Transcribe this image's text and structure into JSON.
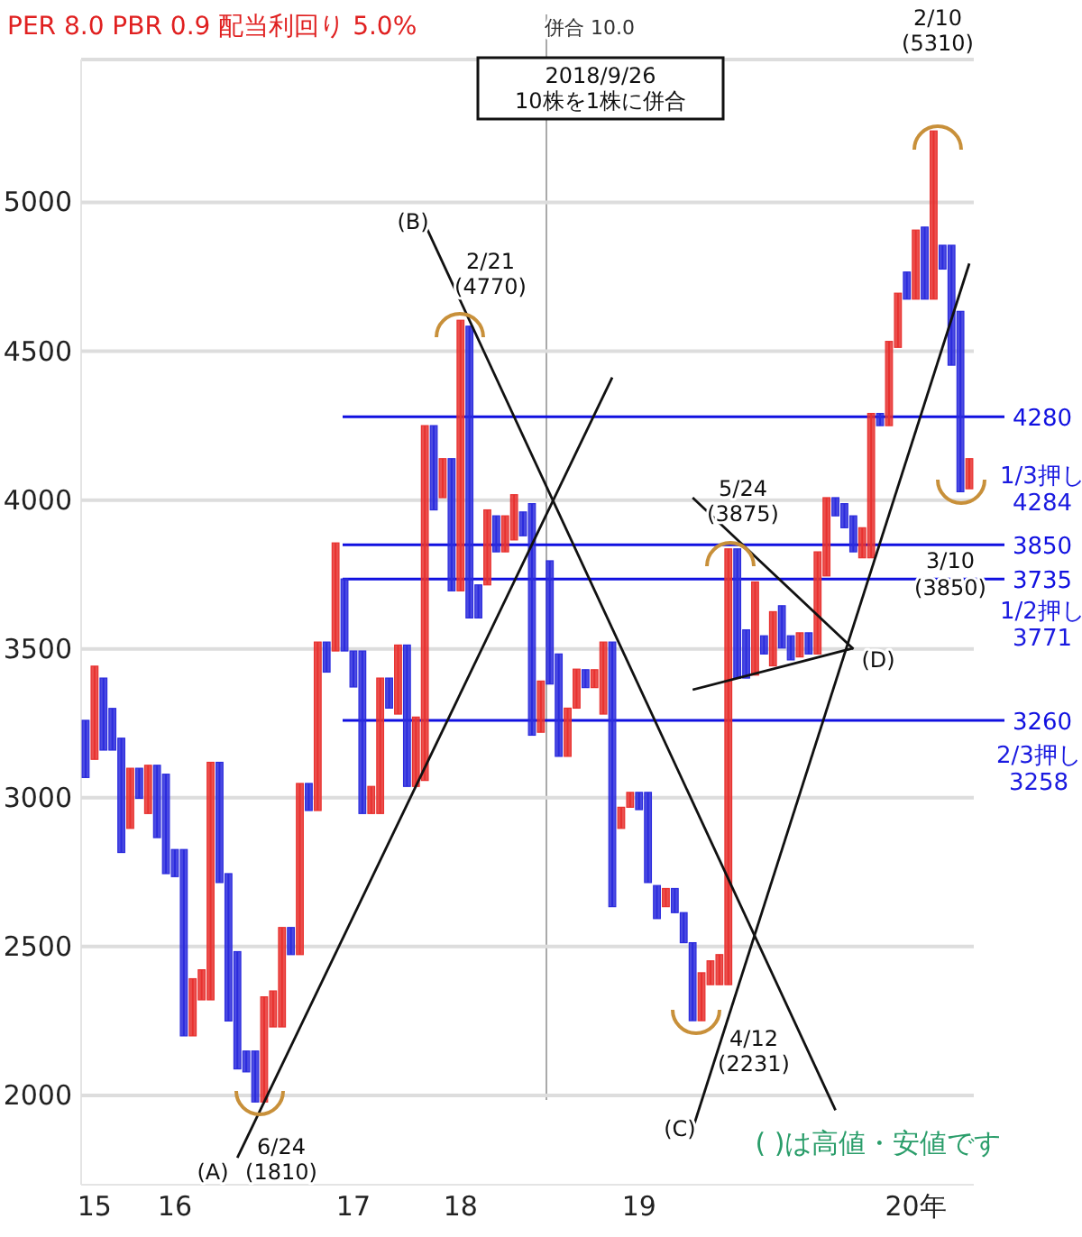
{
  "chart_data": {
    "type": "candlestick",
    "title": "PER 8.0 PBR 0.9 配当利回り 5.0%",
    "categories": [
      null,
      "15",
      null,
      null,
      null,
      null,
      null,
      null,
      null,
      null,
      "16",
      null,
      null,
      null,
      null,
      null,
      null,
      null,
      null,
      null,
      null,
      null,
      null,
      null,
      null,
      null,
      null,
      null,
      null,
      null,
      "17",
      null,
      null,
      null,
      null,
      null,
      null,
      null,
      null,
      null,
      null,
      null,
      "18",
      null,
      null,
      null,
      null,
      null,
      null,
      null,
      null,
      null,
      null,
      null,
      null,
      null,
      null,
      null,
      null,
      null,
      null,
      null,
      "19",
      null,
      null,
      null,
      null,
      null,
      null,
      null,
      null,
      null,
      null,
      null,
      null,
      null,
      null,
      null,
      null,
      null,
      null,
      null,
      null,
      null,
      null,
      null,
      null,
      null,
      null,
      null,
      null,
      null,
      null,
      "20年",
      null,
      null,
      null,
      null,
      null,
      null
    ],
    "ohlc": [
      [
        3260,
        3260,
        3068,
        3068
      ],
      [
        3129,
        3442,
        3129,
        3442
      ],
      [
        3402,
        3402,
        3160,
        3160
      ],
      [
        3300,
        3300,
        3160,
        3160
      ],
      [
        3200,
        3200,
        2816,
        2816
      ],
      [
        2897,
        3099,
        2897,
        3099
      ],
      [
        3099,
        3099,
        2998,
        2998
      ],
      [
        2947,
        3109,
        2947,
        3109
      ],
      [
        3109,
        3109,
        2866,
        2866
      ],
      [
        3079,
        3079,
        2745,
        2745
      ],
      [
        2826,
        2826,
        2735,
        2735
      ],
      [
        2826,
        2826,
        2200,
        2200
      ],
      [
        2200,
        2392,
        2200,
        2392
      ],
      [
        2321,
        2422,
        2321,
        2422
      ],
      [
        2321,
        3119,
        2321,
        3119
      ],
      [
        3119,
        3119,
        2715,
        2715
      ],
      [
        2745,
        2745,
        2250,
        2250
      ],
      [
        2483,
        2483,
        2089,
        2089
      ],
      [
        2149,
        2149,
        2079,
        2079
      ],
      [
        2149,
        2149,
        1978,
        1978
      ],
      [
        1978,
        2331,
        1978,
        2331
      ],
      [
        2230,
        2351,
        2230,
        2351
      ],
      [
        2230,
        2564,
        2230,
        2564
      ],
      [
        2564,
        2564,
        2473,
        2473
      ],
      [
        2473,
        3048,
        2473,
        3048
      ],
      [
        3048,
        3048,
        2957,
        2957
      ],
      [
        2957,
        3523,
        2957,
        3523
      ],
      [
        3523,
        3523,
        3422,
        3422
      ],
      [
        3493,
        3856,
        3493,
        3856
      ],
      [
        3735,
        3735,
        3493,
        3493
      ],
      [
        3493,
        3493,
        3372,
        3372
      ],
      [
        3493,
        3493,
        2947,
        2947
      ],
      [
        2947,
        3038,
        2947,
        3038
      ],
      [
        2947,
        3402,
        2947,
        3402
      ],
      [
        3402,
        3402,
        3301,
        3301
      ],
      [
        3281,
        3513,
        3281,
        3513
      ],
      [
        3513,
        3513,
        3038,
        3038
      ],
      [
        3038,
        3271,
        3038,
        3271
      ],
      [
        3058,
        4250,
        3058,
        4250
      ],
      [
        4250,
        4250,
        3967,
        3967
      ],
      [
        4008,
        4139,
        4008,
        4139
      ],
      [
        4139,
        4139,
        3695,
        3695
      ],
      [
        3695,
        4604,
        3695,
        4604
      ],
      [
        4584,
        4584,
        3604,
        3604
      ],
      [
        3715,
        3715,
        3604,
        3604
      ],
      [
        3715,
        3967,
        3715,
        3967
      ],
      [
        3947,
        3947,
        3826,
        3826
      ],
      [
        3826,
        3947,
        3826,
        3947
      ],
      [
        3866,
        4018,
        3866,
        4018
      ],
      [
        3960,
        3960,
        3880,
        3880
      ],
      [
        3988,
        3988,
        3210,
        3210
      ],
      [
        3220,
        3392,
        3220,
        3392
      ],
      [
        3796,
        3796,
        3382,
        3382
      ],
      [
        3483,
        3483,
        3139,
        3139
      ],
      [
        3139,
        3301,
        3139,
        3301
      ],
      [
        3301,
        3432,
        3301,
        3432
      ],
      [
        3430,
        3430,
        3370,
        3370
      ],
      [
        3370,
        3430,
        3370,
        3430
      ],
      [
        3281,
        3523,
        3281,
        3523
      ],
      [
        3523,
        3523,
        2634,
        2634
      ],
      [
        2897,
        2968,
        2897,
        2968
      ],
      [
        2968,
        3018,
        2968,
        3018
      ],
      [
        3018,
        3018,
        2960,
        2960
      ],
      [
        3018,
        3018,
        2715,
        2715
      ],
      [
        2705,
        2705,
        2594,
        2594
      ],
      [
        2634,
        2695,
        2634,
        2695
      ],
      [
        2695,
        2695,
        2614,
        2614
      ],
      [
        2614,
        2614,
        2513,
        2513
      ],
      [
        2513,
        2513,
        2251,
        2251
      ],
      [
        2251,
        2412,
        2251,
        2412
      ],
      [
        2372,
        2452,
        2372,
        2452
      ],
      [
        2372,
        2473,
        2372,
        2473
      ],
      [
        2372,
        3836,
        2372,
        3836
      ],
      [
        3836,
        3836,
        3402,
        3402
      ],
      [
        3564,
        3564,
        3402,
        3402
      ],
      [
        3412,
        3725,
        3412,
        3725
      ],
      [
        3544,
        3544,
        3483,
        3483
      ],
      [
        3443,
        3625,
        3443,
        3625
      ],
      [
        3645,
        3645,
        3503,
        3503
      ],
      [
        3544,
        3544,
        3463,
        3463
      ],
      [
        3473,
        3554,
        3473,
        3554
      ],
      [
        3554,
        3554,
        3483,
        3483
      ],
      [
        3483,
        3826,
        3483,
        3826
      ],
      [
        3745,
        4008,
        3745,
        4008
      ],
      [
        4008,
        4008,
        3947,
        3947
      ],
      [
        3988,
        3988,
        3907,
        3907
      ],
      [
        3947,
        3947,
        3826,
        3826
      ],
      [
        3806,
        3907,
        3806,
        3907
      ],
      [
        3806,
        4291,
        3806,
        4291
      ],
      [
        4291,
        4291,
        4250,
        4250
      ],
      [
        4250,
        4533,
        4250,
        4533
      ],
      [
        4513,
        4695,
        4513,
        4695
      ],
      [
        4766,
        4766,
        4675,
        4675
      ],
      [
        4675,
        4907,
        4675,
        4907
      ],
      [
        4917,
        4917,
        4675,
        4675
      ],
      [
        4675,
        5240,
        4675,
        5240
      ],
      [
        4856,
        4856,
        4776,
        4776
      ],
      [
        4856,
        4856,
        4453,
        4453
      ],
      [
        4634,
        4634,
        4028,
        4028
      ],
      [
        4038,
        4139,
        4038,
        4139
      ]
    ],
    "colors": [
      "#2b2bdd",
      "#e8312f",
      "#2b2bdd",
      "#2b2bdd",
      "#2b2bdd",
      "#e8312f",
      "#2b2bdd",
      "#e8312f",
      "#2b2bdd",
      "#2b2bdd",
      "#2b2bdd",
      "#2b2bdd",
      "#e8312f",
      "#e8312f",
      "#e8312f",
      "#2b2bdd",
      "#2b2bdd",
      "#2b2bdd",
      "#2b2bdd",
      "#2b2bdd",
      "#e8312f",
      "#e8312f",
      "#e8312f",
      "#2b2bdd",
      "#e8312f",
      "#2b2bdd",
      "#e8312f",
      "#2b2bdd",
      "#e8312f",
      "#2b2bdd",
      "#2b2bdd",
      "#2b2bdd",
      "#e8312f",
      "#e8312f",
      "#2b2bdd",
      "#e8312f",
      "#2b2bdd",
      "#e8312f",
      "#e8312f",
      "#2b2bdd",
      "#e8312f",
      "#2b2bdd",
      "#e8312f",
      "#2b2bdd",
      "#2b2bdd",
      "#e8312f",
      "#2b2bdd",
      "#e8312f",
      "#e8312f",
      "#2b2bdd",
      "#2b2bdd",
      "#e8312f",
      "#2b2bdd",
      "#2b2bdd",
      "#e8312f",
      "#e8312f",
      "#2b2bdd",
      "#e8312f",
      "#e8312f",
      "#2b2bdd",
      "#e8312f",
      "#e8312f",
      "#2b2bdd",
      "#2b2bdd",
      "#2b2bdd",
      "#e8312f",
      "#2b2bdd",
      "#2b2bdd",
      "#2b2bdd",
      "#e8312f",
      "#e8312f",
      "#e8312f",
      "#e8312f",
      "#2b2bdd",
      "#2b2bdd",
      "#e8312f",
      "#2b2bdd",
      "#e8312f",
      "#2b2bdd",
      "#2b2bdd",
      "#e8312f",
      "#2b2bdd",
      "#e8312f",
      "#e8312f",
      "#2b2bdd",
      "#2b2bdd",
      "#2b2bdd",
      "#e8312f",
      "#e8312f",
      "#2b2bdd",
      "#e8312f",
      "#e8312f",
      "#2b2bdd",
      "#e8312f",
      "#2b2bdd",
      "#e8312f",
      "#2b2bdd",
      "#2b2bdd",
      "#2b2bdd",
      "#e8312f"
    ],
    "series": [
      {
        "type": "line",
        "color": "#111111",
        "values": [
          null,
          null,
          null,
          null,
          null,
          null,
          null,
          null,
          null,
          null,
          null,
          null,
          null,
          null,
          null,
          null,
          null,
          1790,
          null,
          null,
          null,
          null,
          null,
          null,
          null,
          null,
          null,
          null,
          null,
          null,
          null,
          null,
          null,
          null,
          null,
          null,
          null,
          null,
          null,
          null,
          null,
          null,
          null,
          null,
          null,
          null,
          null,
          null,
          null,
          null,
          null,
          null,
          null,
          null,
          null,
          null,
          null,
          null,
          null,
          4412,
          null,
          null,
          null,
          null,
          null,
          null,
          null,
          null,
          null,
          null,
          null,
          null,
          null,
          null,
          null,
          null,
          null,
          null,
          null,
          null,
          null,
          null,
          null,
          null,
          null,
          null,
          null,
          null,
          null,
          null,
          null,
          null,
          null,
          null,
          null,
          null,
          null,
          null,
          null,
          null
        ]
      },
      {
        "type": "line",
        "color": "#111111",
        "values": [
          null,
          null,
          null,
          null,
          null,
          null,
          null,
          null,
          null,
          null,
          null,
          null,
          null,
          null,
          null,
          null,
          null,
          null,
          null,
          null,
          null,
          null,
          null,
          null,
          null,
          null,
          null,
          null,
          null,
          null,
          null,
          null,
          null,
          null,
          null,
          null,
          null,
          null,
          4927,
          null,
          null,
          null,
          null,
          null,
          null,
          null,
          null,
          null,
          null,
          null,
          null,
          null,
          null,
          null,
          null,
          null,
          null,
          null,
          null,
          null,
          null,
          null,
          null,
          null,
          null,
          null,
          null,
          null,
          null,
          null,
          null,
          null,
          null,
          null,
          null,
          null,
          null,
          null,
          null,
          null,
          null,
          null,
          null,
          null,
          1950,
          null,
          null,
          null,
          null,
          null,
          null,
          null,
          null,
          null,
          null,
          null,
          null,
          null,
          null,
          null
        ]
      },
      {
        "type": "line",
        "color": "#111111",
        "values": [
          null,
          null,
          null,
          null,
          null,
          null,
          null,
          null,
          null,
          null,
          null,
          null,
          null,
          null,
          null,
          null,
          null,
          null,
          null,
          null,
          null,
          null,
          null,
          null,
          null,
          null,
          null,
          null,
          null,
          null,
          null,
          null,
          null,
          null,
          null,
          null,
          null,
          null,
          null,
          null,
          null,
          null,
          null,
          null,
          null,
          null,
          null,
          null,
          null,
          null,
          null,
          null,
          null,
          null,
          null,
          null,
          null,
          null,
          null,
          null,
          null,
          null,
          null,
          null,
          null,
          null,
          null,
          null,
          1887,
          null,
          null,
          null,
          null,
          null,
          null,
          null,
          null,
          null,
          null,
          null,
          null,
          null,
          null,
          null,
          null,
          null,
          null,
          null,
          null,
          null,
          null,
          null,
          null,
          null,
          null,
          null,
          null,
          null,
          null,
          4795
        ]
      },
      {
        "type": "line",
        "color": "#111111",
        "values": [
          null,
          null,
          null,
          null,
          null,
          null,
          null,
          null,
          null,
          null,
          null,
          null,
          null,
          null,
          null,
          null,
          null,
          null,
          null,
          null,
          null,
          null,
          null,
          null,
          null,
          null,
          null,
          null,
          null,
          null,
          null,
          null,
          null,
          null,
          null,
          null,
          null,
          null,
          null,
          null,
          null,
          null,
          null,
          null,
          null,
          null,
          null,
          null,
          null,
          null,
          null,
          null,
          null,
          null,
          null,
          null,
          null,
          null,
          null,
          null,
          null,
          null,
          null,
          null,
          null,
          null,
          null,
          null,
          4008,
          null,
          null,
          null,
          null,
          null,
          null,
          null,
          null,
          null,
          null,
          null,
          null,
          null,
          null,
          null,
          null,
          null,
          3500,
          null,
          null,
          null,
          null,
          null,
          null,
          null,
          null,
          null,
          null,
          null,
          null,
          null
        ]
      },
      {
        "type": "line",
        "color": "#111111",
        "values": [
          null,
          null,
          null,
          null,
          null,
          null,
          null,
          null,
          null,
          null,
          null,
          null,
          null,
          null,
          null,
          null,
          null,
          null,
          null,
          null,
          null,
          null,
          null,
          null,
          null,
          null,
          null,
          null,
          null,
          null,
          null,
          null,
          null,
          null,
          null,
          null,
          null,
          null,
          null,
          null,
          null,
          null,
          null,
          null,
          null,
          null,
          null,
          null,
          null,
          null,
          null,
          null,
          null,
          null,
          null,
          null,
          null,
          null,
          null,
          null,
          null,
          null,
          null,
          null,
          null,
          null,
          null,
          null,
          3363,
          null,
          null,
          null,
          null,
          null,
          null,
          null,
          null,
          null,
          null,
          null,
          null,
          null,
          null,
          null,
          null,
          null,
          3503,
          null,
          null,
          null,
          null,
          null,
          null,
          null,
          null,
          null,
          null,
          null,
          null,
          null
        ]
      }
    ],
    "ylim": [
      1700,
      5480
    ],
    "yticks": [
      2000,
      2500,
      3000,
      3500,
      4000,
      4500,
      5000
    ],
    "grid": "y",
    "ref_lines": [
      {
        "axis": "y",
        "value": 4280,
        "label": "4280",
        "color": "#1010e0"
      },
      {
        "axis": "y",
        "value": 3850,
        "label": "3850",
        "color": "#1010e0"
      },
      {
        "axis": "y",
        "value": 3735,
        "label": "3735",
        "color": "#1010e0"
      },
      {
        "axis": "y",
        "value": 3260,
        "label": "3260",
        "color": "#1010e0"
      }
    ],
    "annotations": [
      "2018/9/26 10株を1株に併合",
      "2/21 (4770)",
      "2/10 (5310)",
      "6/24 (1810)",
      "4/12 (2231)",
      "5/24 (3875)",
      "3/10 (3850)",
      "(A)",
      "(B)",
      "(C)",
      "(D)",
      "1/3押し 4284",
      "1/2押し 3771",
      "2/3押し 3258",
      "( )は高値・安値です",
      "併合 10.0"
    ]
  }
}
